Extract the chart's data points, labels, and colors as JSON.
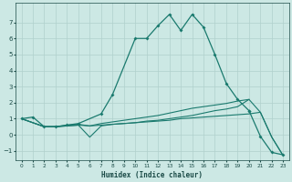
{
  "xlabel": "Humidex (Indice chaleur)",
  "bg_color": "#cce8e4",
  "grid_color": "#b0d0cc",
  "line_color": "#1a7a6e",
  "text_color": "#1a4a46",
  "xlim": [
    -0.5,
    23.5
  ],
  "ylim": [
    -1.6,
    8.2
  ],
  "yticks": [
    -1,
    0,
    1,
    2,
    3,
    4,
    5,
    6,
    7
  ],
  "xticks": [
    0,
    1,
    2,
    3,
    4,
    5,
    6,
    7,
    8,
    9,
    10,
    11,
    12,
    13,
    14,
    15,
    16,
    17,
    18,
    19,
    20,
    21,
    22,
    23
  ],
  "curve1_x": [
    0,
    1,
    2,
    3,
    4,
    5,
    7,
    8,
    10,
    11,
    12,
    13,
    14,
    15,
    16,
    17,
    18,
    19,
    20
  ],
  "curve1_y": [
    1.0,
    1.1,
    0.5,
    0.5,
    0.6,
    0.7,
    1.3,
    2.5,
    6.0,
    6.0,
    6.8,
    7.5,
    6.5,
    7.5,
    6.7,
    5.0,
    3.2,
    2.2,
    1.5
  ],
  "curve2_x": [
    20,
    21,
    22,
    23
  ],
  "curve2_y": [
    1.5,
    -0.1,
    -1.1,
    -1.25
  ],
  "line1_x": [
    0,
    2,
    3,
    4,
    5,
    6,
    7,
    8,
    9,
    10,
    11,
    12,
    13,
    14,
    15,
    16,
    17,
    18,
    19,
    20,
    21,
    22,
    23
  ],
  "line1_y": [
    1.0,
    0.5,
    0.5,
    0.55,
    0.6,
    0.55,
    0.6,
    0.65,
    0.7,
    0.75,
    0.85,
    0.9,
    1.0,
    1.1,
    1.2,
    1.35,
    1.5,
    1.6,
    1.75,
    2.2,
    1.4,
    -0.15,
    -1.3
  ],
  "line2_x": [
    0,
    2,
    3,
    4,
    5,
    6,
    7,
    8,
    9,
    10,
    11,
    12,
    13,
    14,
    15,
    16,
    17,
    18,
    19,
    20
  ],
  "line2_y": [
    1.0,
    0.5,
    0.5,
    0.6,
    0.65,
    0.55,
    0.7,
    0.8,
    0.9,
    1.0,
    1.1,
    1.2,
    1.35,
    1.5,
    1.65,
    1.75,
    1.85,
    1.95,
    2.1,
    2.2
  ],
  "line3_x": [
    0,
    2,
    3,
    4,
    5,
    6,
    7,
    8,
    9,
    10,
    11,
    12,
    13,
    14,
    15,
    16,
    17,
    18,
    19,
    20,
    21,
    22,
    23
  ],
  "line3_y": [
    1.0,
    0.5,
    0.5,
    0.55,
    0.6,
    -0.15,
    0.55,
    0.65,
    0.7,
    0.75,
    0.8,
    0.85,
    0.9,
    1.0,
    1.05,
    1.1,
    1.15,
    1.2,
    1.25,
    1.3,
    1.4,
    -0.15,
    -1.3
  ]
}
